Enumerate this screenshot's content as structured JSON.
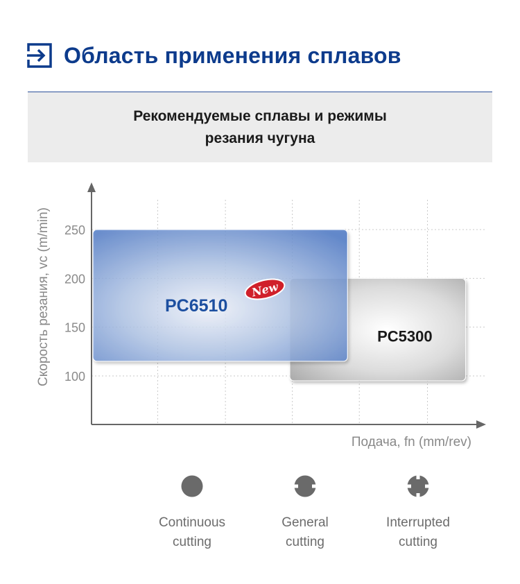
{
  "header": {
    "icon": "enter-arrow-icon",
    "title": "Область применения сплавов",
    "accent_color": "#0d3b8c"
  },
  "banner": {
    "line1": "Рекомендуемые сплавы и режимы",
    "line2": "резания чугуна"
  },
  "chart_data": {
    "type": "range-region",
    "ylabel": "Скорость резания, vc (m/min)",
    "xlabel": "Подача, fn (mm/rev)",
    "yticks": [
      100,
      150,
      200,
      250
    ],
    "ylim": [
      50,
      280
    ],
    "grid_x": true,
    "grid_y": true,
    "regions": [
      {
        "name": "PC6510",
        "badge": "New",
        "fn_span": [
          0,
          0.65
        ],
        "vc_range": [
          115,
          250
        ],
        "color": "#4a76c4"
      },
      {
        "name": "PC5300",
        "fn_span": [
          0.5,
          0.95
        ],
        "vc_range": [
          95,
          200
        ],
        "color": "#a8a8a8"
      }
    ]
  },
  "cutting_modes": [
    {
      "icon": "continuous-cutting-icon",
      "line1": "Continuous",
      "line2": "cutting"
    },
    {
      "icon": "general-cutting-icon",
      "line1": "General",
      "line2": "cutting"
    },
    {
      "icon": "interrupted-cutting-icon",
      "line1": "Interrupted",
      "line2": "cutting"
    }
  ]
}
